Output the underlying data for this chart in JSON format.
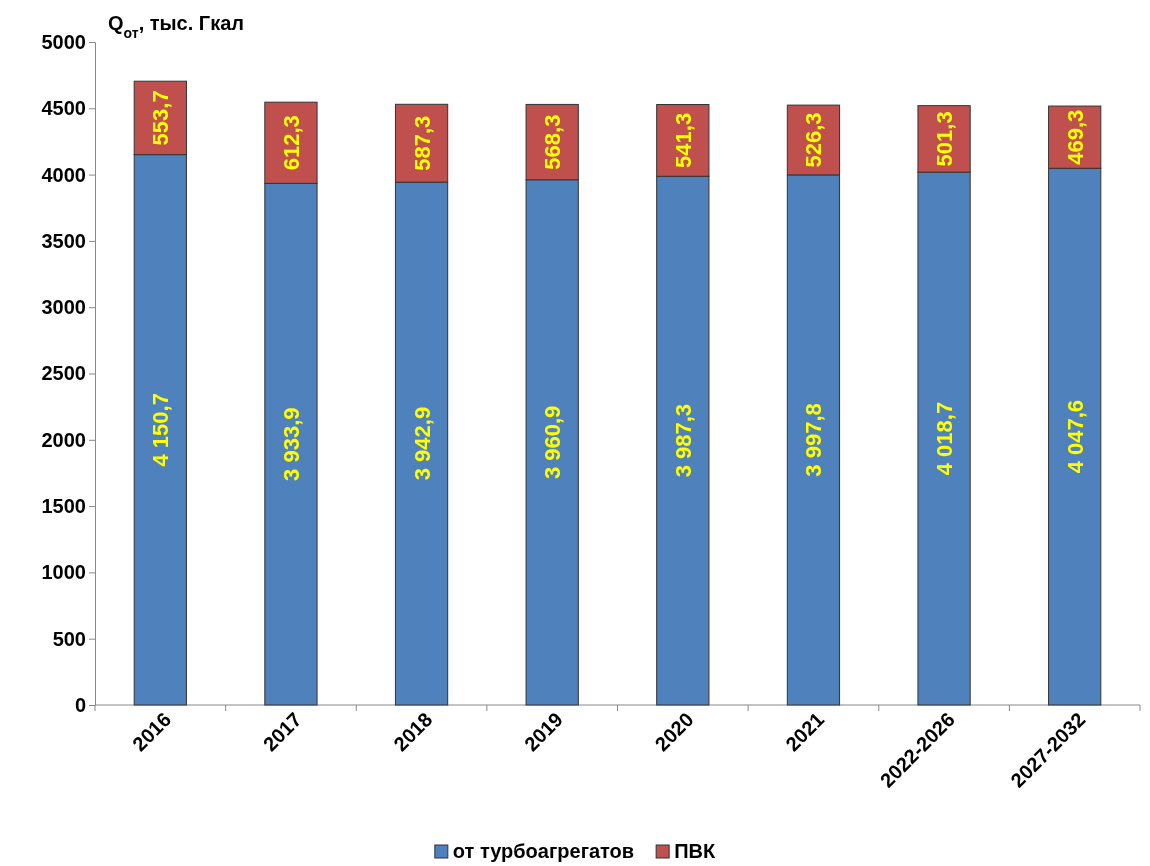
{
  "chart_data": {
    "type": "bar",
    "stacked": true,
    "ylabel": "Q$_{от}$, тыс. Гкал",
    "categories": [
      "2016",
      "2017",
      "2018",
      "2019",
      "2020",
      "2021",
      "2022-2026",
      "2027-2032"
    ],
    "series": [
      {
        "name": "от турбоагрегатов",
        "color": "#4f81bd",
        "values": [
          4150.7,
          3933.9,
          3942.9,
          3960.9,
          3987.3,
          3997.8,
          4018.7,
          4047.6
        ],
        "value_labels": [
          "4 150,7",
          "3 933,9",
          "3 942,9",
          "3 960,9",
          "3 987,3",
          "3 997,8",
          "4 018,7",
          "4 047,6"
        ]
      },
      {
        "name": "ПВК",
        "color": "#c0504d",
        "values": [
          553.7,
          612.3,
          587.3,
          568.3,
          541.3,
          526.3,
          501.3,
          469.3
        ],
        "value_labels": [
          "553,7",
          "612,3",
          "587,3",
          "568,3",
          "541,3",
          "526,3",
          "501,3",
          "469,3"
        ]
      }
    ],
    "ylim": [
      0,
      5000
    ],
    "yticks": [
      0,
      500,
      1000,
      1500,
      2000,
      2500,
      3000,
      3500,
      4000,
      4500,
      5000
    ],
    "legend": "bottom"
  }
}
